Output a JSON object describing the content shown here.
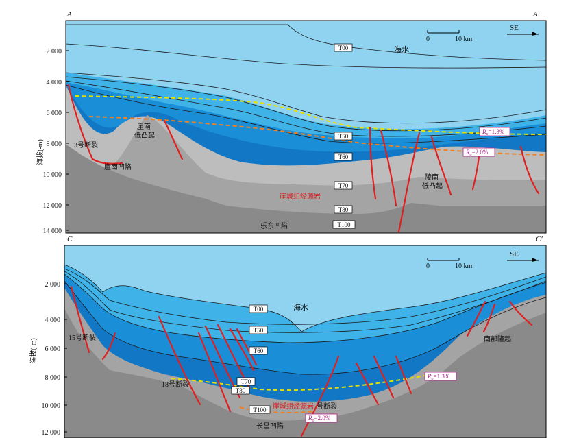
{
  "sections": [
    {
      "start_label": "A",
      "end_label": "A′",
      "direction": "SE",
      "scale": {
        "zero": "0",
        "length": "10 km"
      },
      "yaxis_label": "海拔(-m)",
      "yticks": [
        "2 000",
        "4 000",
        "6 000",
        "8 000",
        "10 000",
        "12 000",
        "14 000"
      ],
      "horizons": [
        "T00",
        "T50",
        "T60",
        "T70",
        "T80",
        "T100"
      ],
      "labels": {
        "seawater": "海水",
        "fault": "3号断裂",
        "uplift_1": "崖南",
        "uplift_2": "低凸起",
        "sag": "崖南凹陷",
        "uplift_east_1": "陵南",
        "uplift_east_2": "低凸起",
        "source_rock": "崖城组烃源岩",
        "sag_bottom": "乐东凹陷"
      },
      "ro_labels": [
        {
          "symbol": "R",
          "sub": "o",
          "value": "=1.3%",
          "color": "#e8e000"
        },
        {
          "symbol": "R",
          "sub": "o",
          "value": "=2.0%",
          "color": "#f08020"
        }
      ]
    },
    {
      "start_label": "C",
      "end_label": "C′",
      "direction": "SE",
      "scale": {
        "zero": "0",
        "length": "10 km"
      },
      "yaxis_label": "海拔(-m)",
      "yticks": [
        "2 000",
        "4 000",
        "6 000",
        "8 000",
        "10 000",
        "12 000"
      ],
      "horizons": [
        "T00",
        "T50",
        "T60",
        "T70",
        "T80",
        "T100"
      ],
      "labels": {
        "seawater": "海水",
        "fault_15": "15号断裂",
        "fault_18": "18号断裂",
        "fault_mid": "号断裂",
        "uplift": "南部隆起",
        "source_rock": "崖城组烃源岩",
        "sag_bottom": "长昌凹陷"
      },
      "ro_labels": [
        {
          "symbol": "R",
          "sub": "o",
          "value": "=1.3%",
          "color": "#e8e000"
        },
        {
          "symbol": "R",
          "sub": "o",
          "value": "=2.0%",
          "color": "#f08020"
        }
      ]
    }
  ],
  "colors": {
    "sea": "#8fd3f0",
    "layer_light": "#3fb2e8",
    "layer_mid": "#1a8fd8",
    "layer_deep": "#1277c4",
    "rock_light": "#bdbdbd",
    "rock_mid": "#a4a4a4",
    "rock_dark": "#8a8a8a",
    "fault": "#e02020",
    "ro_13": "#e8e000",
    "ro_20": "#f08020",
    "ro_text": "#b0208a"
  }
}
